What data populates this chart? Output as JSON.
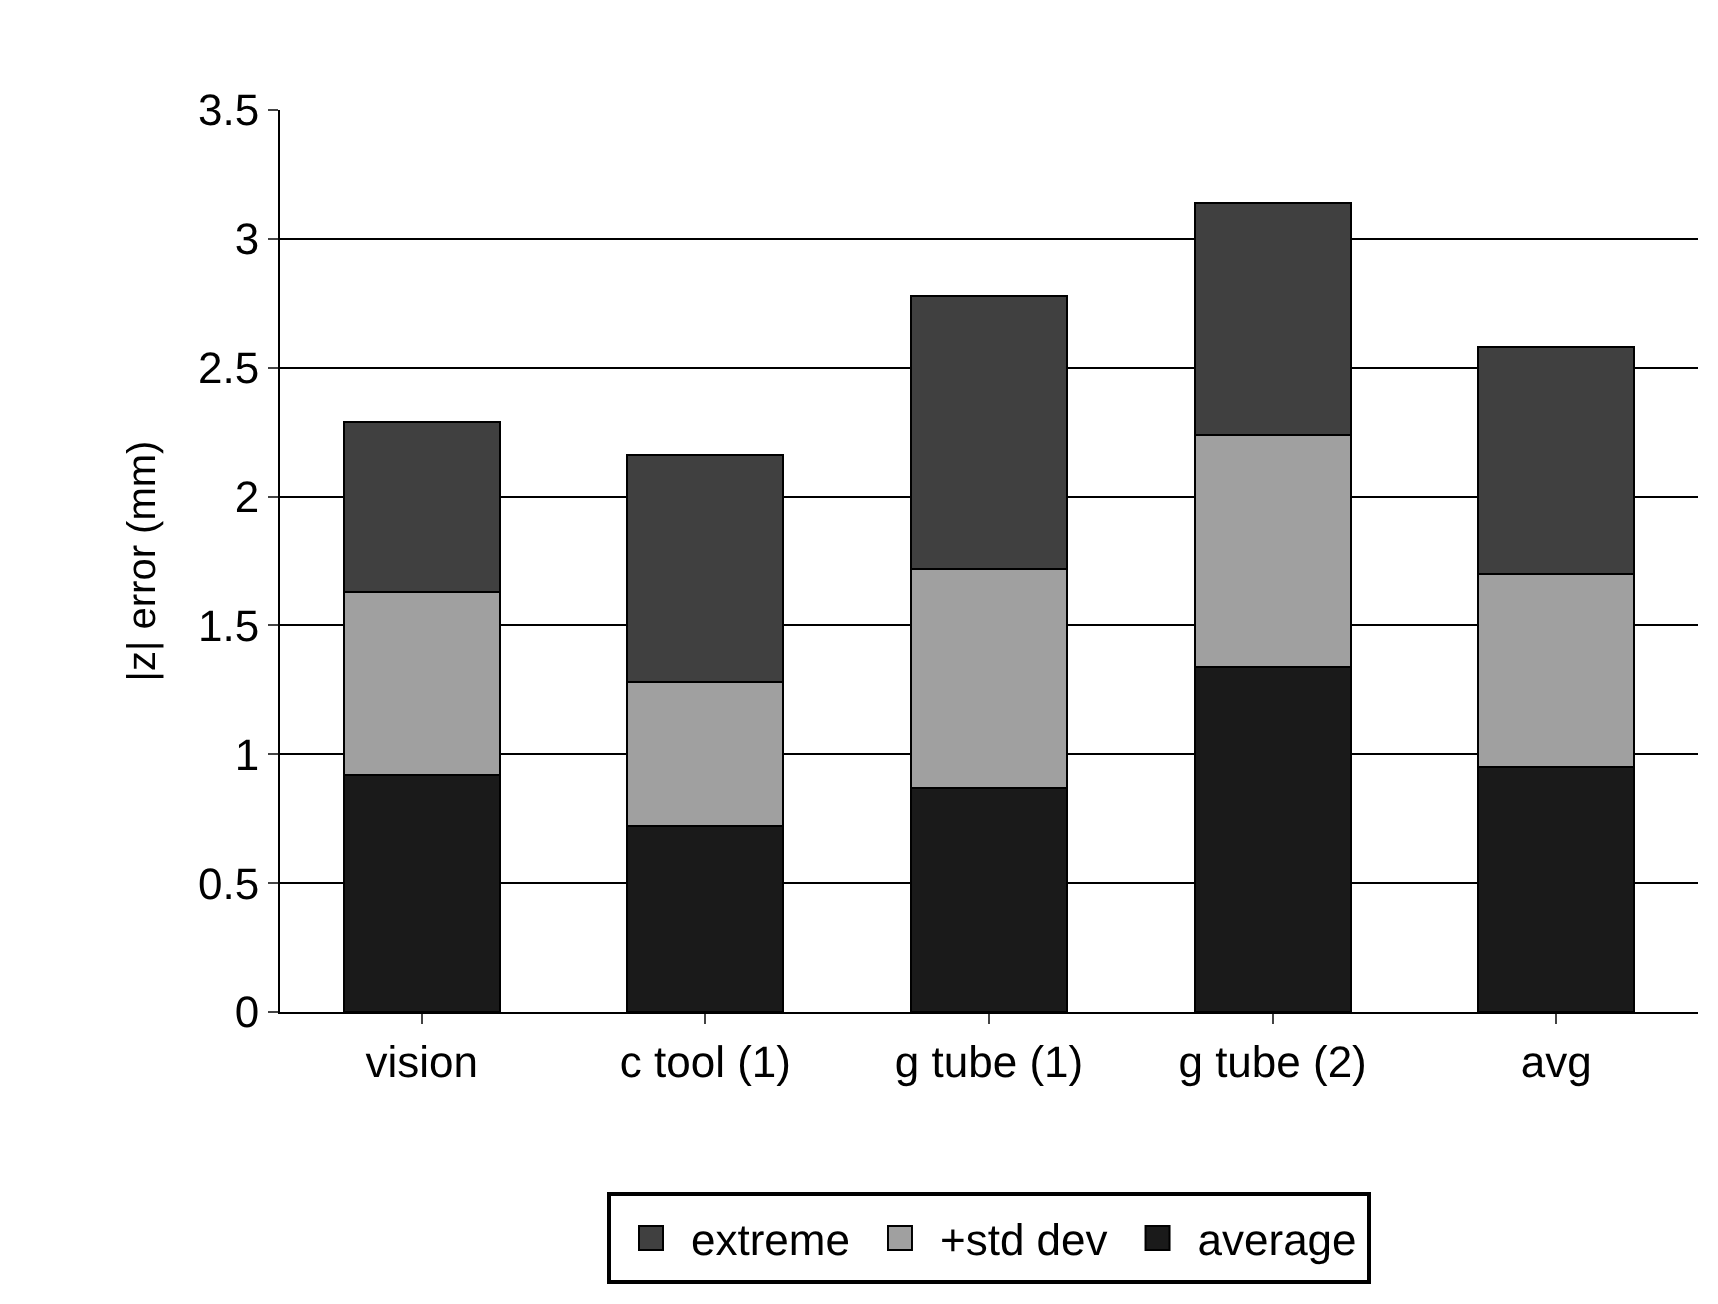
{
  "chart_data": {
    "type": "bar",
    "stacked": true,
    "ylabel": "|z| error (mm)",
    "categories": [
      "vision",
      "c tool (1)",
      "g tube (1)",
      "g tube (2)",
      "avg"
    ],
    "series": [
      {
        "name": "average",
        "color": "#1a1a1a",
        "values": [
          0.92,
          0.72,
          0.87,
          1.34,
          0.95
        ]
      },
      {
        "name": "+std dev",
        "color": "#a0a0a0",
        "values": [
          0.71,
          0.56,
          0.85,
          0.9,
          0.75
        ]
      },
      {
        "name": "extreme",
        "color": "#404040",
        "values": [
          0.66,
          0.88,
          1.06,
          0.9,
          0.88
        ]
      }
    ],
    "ylim": [
      0,
      3.5
    ],
    "yticks": [
      0,
      0.5,
      1,
      1.5,
      2,
      2.5,
      3,
      3.5
    ],
    "grid": "y",
    "legend": "bottom"
  }
}
